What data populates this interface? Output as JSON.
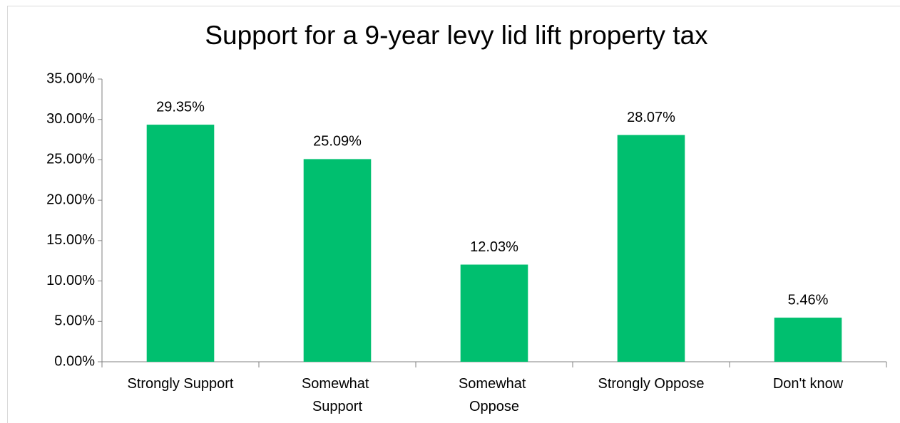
{
  "chart_data": {
    "type": "bar",
    "title": "Support for a 9-year levy lid lift property tax",
    "categories": [
      "Strongly Support",
      "Somewhat\nSupport",
      "Somewhat\nOppose",
      "Strongly Oppose",
      "Don't know"
    ],
    "values": [
      29.35,
      25.09,
      12.03,
      28.07,
      5.46
    ],
    "value_labels": [
      "29.35%",
      "25.09%",
      "12.03%",
      "28.07%",
      "5.46%"
    ],
    "color": "#00bf6f",
    "ylim": [
      0,
      35
    ],
    "yticks": [
      {
        "value": 0,
        "label": "0.00%"
      },
      {
        "value": 5,
        "label": "5.00%"
      },
      {
        "value": 10,
        "label": "10.00%"
      },
      {
        "value": 15,
        "label": "15.00%"
      },
      {
        "value": 20,
        "label": "20.00%"
      },
      {
        "value": 25,
        "label": "25.00%"
      },
      {
        "value": 30,
        "label": "30.00%"
      },
      {
        "value": 35,
        "label": "35.00%"
      }
    ],
    "grid": false
  }
}
